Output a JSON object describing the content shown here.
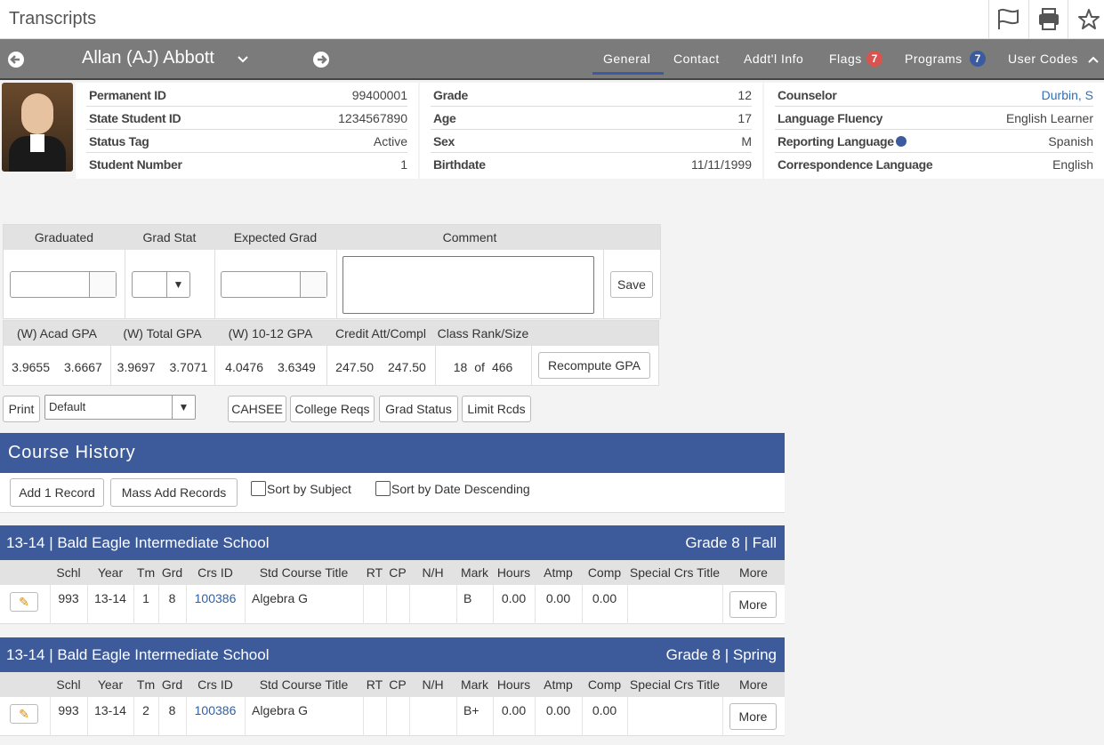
{
  "header": {
    "title": "Transcripts"
  },
  "student_bar": {
    "name": "Allan (AJ) Abbott",
    "tabs": [
      {
        "label": "General"
      },
      {
        "label": "Contact"
      },
      {
        "label": "Addt'l Info"
      },
      {
        "label": "Flags",
        "badge": "7"
      },
      {
        "label": "Programs",
        "badge": "7"
      },
      {
        "label": "User Codes"
      }
    ]
  },
  "student_info": {
    "columns": [
      [
        {
          "label": "Permanent ID",
          "value": "99400001"
        },
        {
          "label": "State Student ID",
          "value": "1234567890"
        },
        {
          "label": "Status Tag",
          "value": "Active"
        },
        {
          "label": "Student Number",
          "value": "1"
        }
      ],
      [
        {
          "label": "Grade",
          "value": "12"
        },
        {
          "label": "Age",
          "value": "17"
        },
        {
          "label": "Sex",
          "value": "M"
        },
        {
          "label": "Birthdate",
          "value": "11/11/1999"
        }
      ],
      [
        {
          "label": "Counselor",
          "value": "Durbin, S"
        },
        {
          "label": "Language Fluency",
          "value": "English Learner"
        },
        {
          "label": "Reporting Language",
          "value": "Spanish"
        },
        {
          "label": "Correspondence Language",
          "value": "English"
        }
      ]
    ]
  },
  "grad_table": {
    "headers": [
      "Graduated",
      "Grad Stat",
      "Expected Grad",
      "Comment"
    ],
    "save": "Save"
  },
  "gpa_table": {
    "headers": [
      "(W) Acad GPA",
      "(W) Total GPA",
      "(W) 10-12 GPA",
      "Credit Att/Compl",
      "Class Rank/Size"
    ],
    "values": [
      [
        "3.9655",
        "3.6667"
      ],
      [
        "3.9697",
        "3.7071"
      ],
      [
        "4.0476",
        "3.6349"
      ],
      [
        "247.50",
        "247.50"
      ],
      [
        "18",
        "of",
        "466"
      ]
    ],
    "button": "Recompute GPA"
  },
  "toolbar": {
    "print": "Print",
    "select": "Default",
    "buttons": [
      "CAHSEE",
      "College Reqs",
      "Grad Status",
      "Limit Rcds"
    ]
  },
  "course_history": {
    "title": "Course History",
    "buttons": [
      "Add 1 Record",
      "Mass Add Records"
    ],
    "checkboxes": [
      "Sort by Subject",
      "Sort by Date Descending"
    ],
    "columns": [
      "Schl",
      "Year",
      "Tm",
      "Grd",
      "Crs ID",
      "Std Course Title",
      "RT",
      "CP",
      "N/H",
      "Mark",
      "Hours",
      "Atmp",
      "Comp",
      "Special Crs Title",
      "More"
    ],
    "sections": [
      {
        "title": "13-14 | Bald Eagle Intermediate School",
        "term": "Grade 8 | Fall",
        "rows": [
          {
            "schl": "993",
            "year": "13-14",
            "tm": "1",
            "grd": "8",
            "crs_id": "100386",
            "title": "Algebra G",
            "mark": "B",
            "hours": "0.00",
            "atmp": "0.00",
            "comp": "0.00",
            "more": "More"
          }
        ]
      },
      {
        "title": "13-14 | Bald Eagle Intermediate School",
        "term": "Grade 8 | Spring",
        "rows": [
          {
            "schl": "993",
            "year": "13-14",
            "tm": "2",
            "grd": "8",
            "crs_id": "100386",
            "title": "Algebra G",
            "mark": "B+",
            "hours": "0.00",
            "atmp": "0.00",
            "comp": "0.00",
            "more": "More"
          }
        ]
      }
    ]
  }
}
